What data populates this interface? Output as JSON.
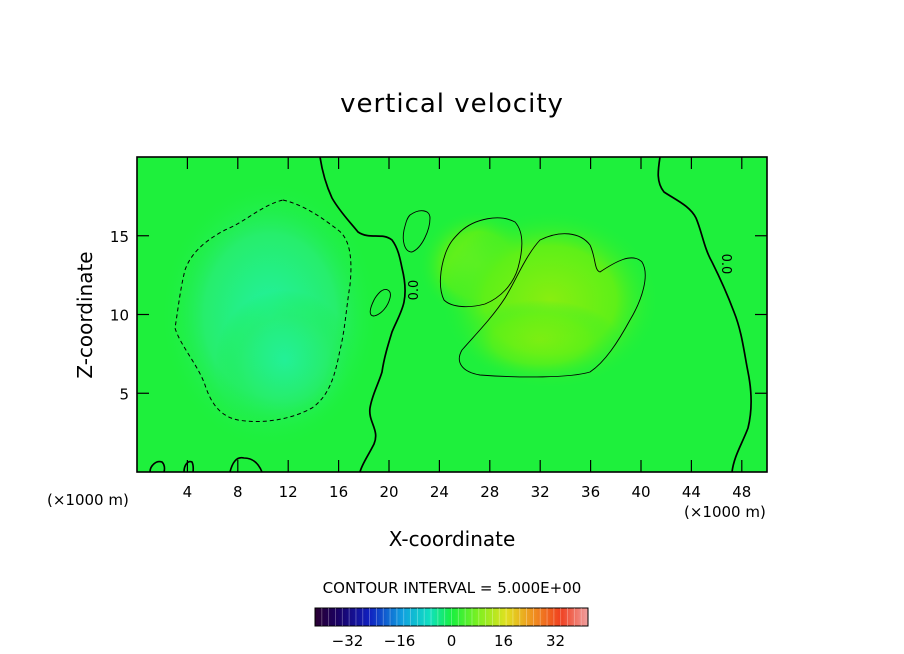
{
  "chart_data": {
    "type": "heatmap",
    "title": "vertical velocity",
    "xlabel": "X-coordinate",
    "ylabel": "Z-coordinate",
    "x_unit_left": "(×1000 m)",
    "x_unit_right": "(×1000 m)",
    "xlim": [
      0,
      50
    ],
    "ylim": [
      0,
      20
    ],
    "xticks": [
      4,
      8,
      12,
      16,
      20,
      24,
      28,
      32,
      36,
      40,
      44,
      48
    ],
    "yticks": [
      5,
      10,
      15
    ],
    "contour_interval_text": "CONTOUR INTERVAL = 5.000E+00",
    "contour_labels": [
      {
        "text": "0.0",
        "x": 21.8,
        "z": 11.8
      },
      {
        "text": "0.0",
        "x": 45.8,
        "z": 13.0
      }
    ],
    "colorbar": {
      "range": [
        -42,
        42
      ],
      "ticks": [
        -32,
        -16,
        0,
        16,
        32
      ],
      "tick_labels": [
        "−32",
        "−16",
        "0",
        "16",
        "32"
      ]
    },
    "field_features": [
      {
        "type": "min",
        "x": 11,
        "z": 7,
        "value": -6
      },
      {
        "type": "max",
        "x": 27.5,
        "z": 14,
        "value": 6
      },
      {
        "type": "max",
        "x": 33,
        "z": 12.5,
        "value": 7
      }
    ],
    "colors": {
      "background_field": "#1ef03c",
      "contour": "#000000"
    }
  }
}
